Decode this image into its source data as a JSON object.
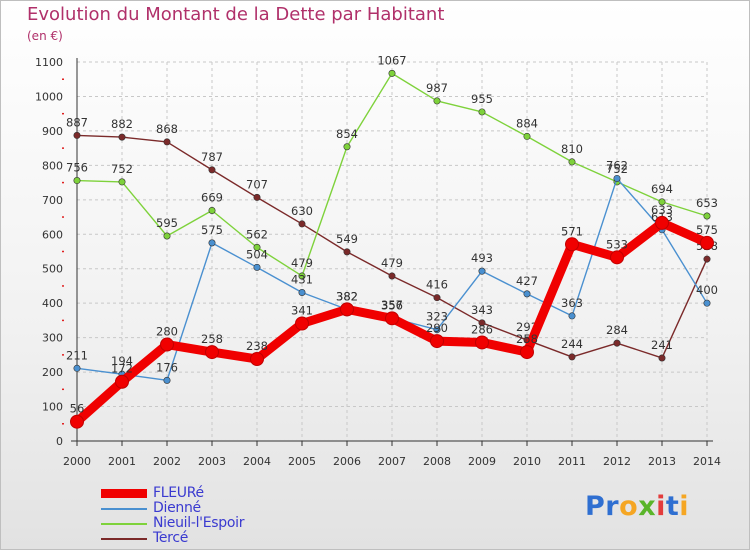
{
  "title": "Evolution du Montant de la Dette par Habitant",
  "unit": "(en €)",
  "brand": {
    "letters": [
      "P",
      "r",
      "o",
      "x",
      "i",
      "t",
      "i"
    ],
    "colors": [
      "#2f6fd1",
      "#2f6fd1",
      "#f5a623",
      "#5ab52a",
      "#e33c3c",
      "#2f6fd1",
      "#f5a623"
    ]
  },
  "chart_data": {
    "type": "line",
    "x": [
      "2000",
      "2001",
      "2002",
      "2003",
      "2004",
      "2005",
      "2006",
      "2007",
      "2008",
      "2009",
      "2010",
      "2011",
      "2012",
      "2013",
      "2014"
    ],
    "ylim": [
      0,
      1100
    ],
    "yticks": [
      "0",
      "100",
      "200",
      "300",
      "400",
      "500",
      "600",
      "700",
      "800",
      "900",
      "1000",
      "1100"
    ],
    "grid": true,
    "legend_position": "bottom-left",
    "series": [
      {
        "name": "Tercé",
        "color": "#7b2a2a",
        "values": [
          887,
          882,
          868,
          787,
          707,
          630,
          549,
          479,
          416,
          343,
          293,
          244,
          284,
          241,
          528
        ],
        "labels": [
          "887",
          "882",
          "868",
          "787",
          "707",
          "630",
          "549",
          "479",
          "416",
          "343",
          "293",
          "244",
          "284",
          "241",
          "528"
        ]
      },
      {
        "name": "Nieuil-l'Espoir",
        "color": "#7ed23b",
        "values": [
          756,
          752,
          595,
          669,
          562,
          479,
          854,
          1067,
          987,
          955,
          884,
          810,
          752,
          694,
          653
        ],
        "labels": [
          "756",
          "752",
          "595",
          "669",
          "562",
          "479",
          "854",
          "1067",
          "987",
          "955",
          "884",
          "810",
          "752",
          "694",
          "653"
        ]
      },
      {
        "name": "Dienné",
        "color": "#4a90d0",
        "values": [
          211,
          194,
          176,
          575,
          504,
          431,
          382,
          357,
          323,
          493,
          427,
          363,
          762,
          613,
          400
        ],
        "labels": [
          "211",
          "194",
          "176",
          "575",
          "504",
          "431",
          "382",
          "357",
          "323",
          "493",
          "427",
          "363",
          "762",
          "613",
          "400"
        ]
      },
      {
        "name": "FLEURé",
        "color": "#f00000",
        "values": [
          56,
          172,
          280,
          258,
          238,
          341,
          382,
          356,
          290,
          286,
          258,
          571,
          533,
          633,
          575
        ],
        "labels": [
          "56",
          "172",
          "280",
          "258",
          "238",
          "341",
          "382",
          "356",
          "290",
          "286",
          "258",
          "571",
          "533",
          "633",
          "575"
        ]
      }
    ]
  }
}
